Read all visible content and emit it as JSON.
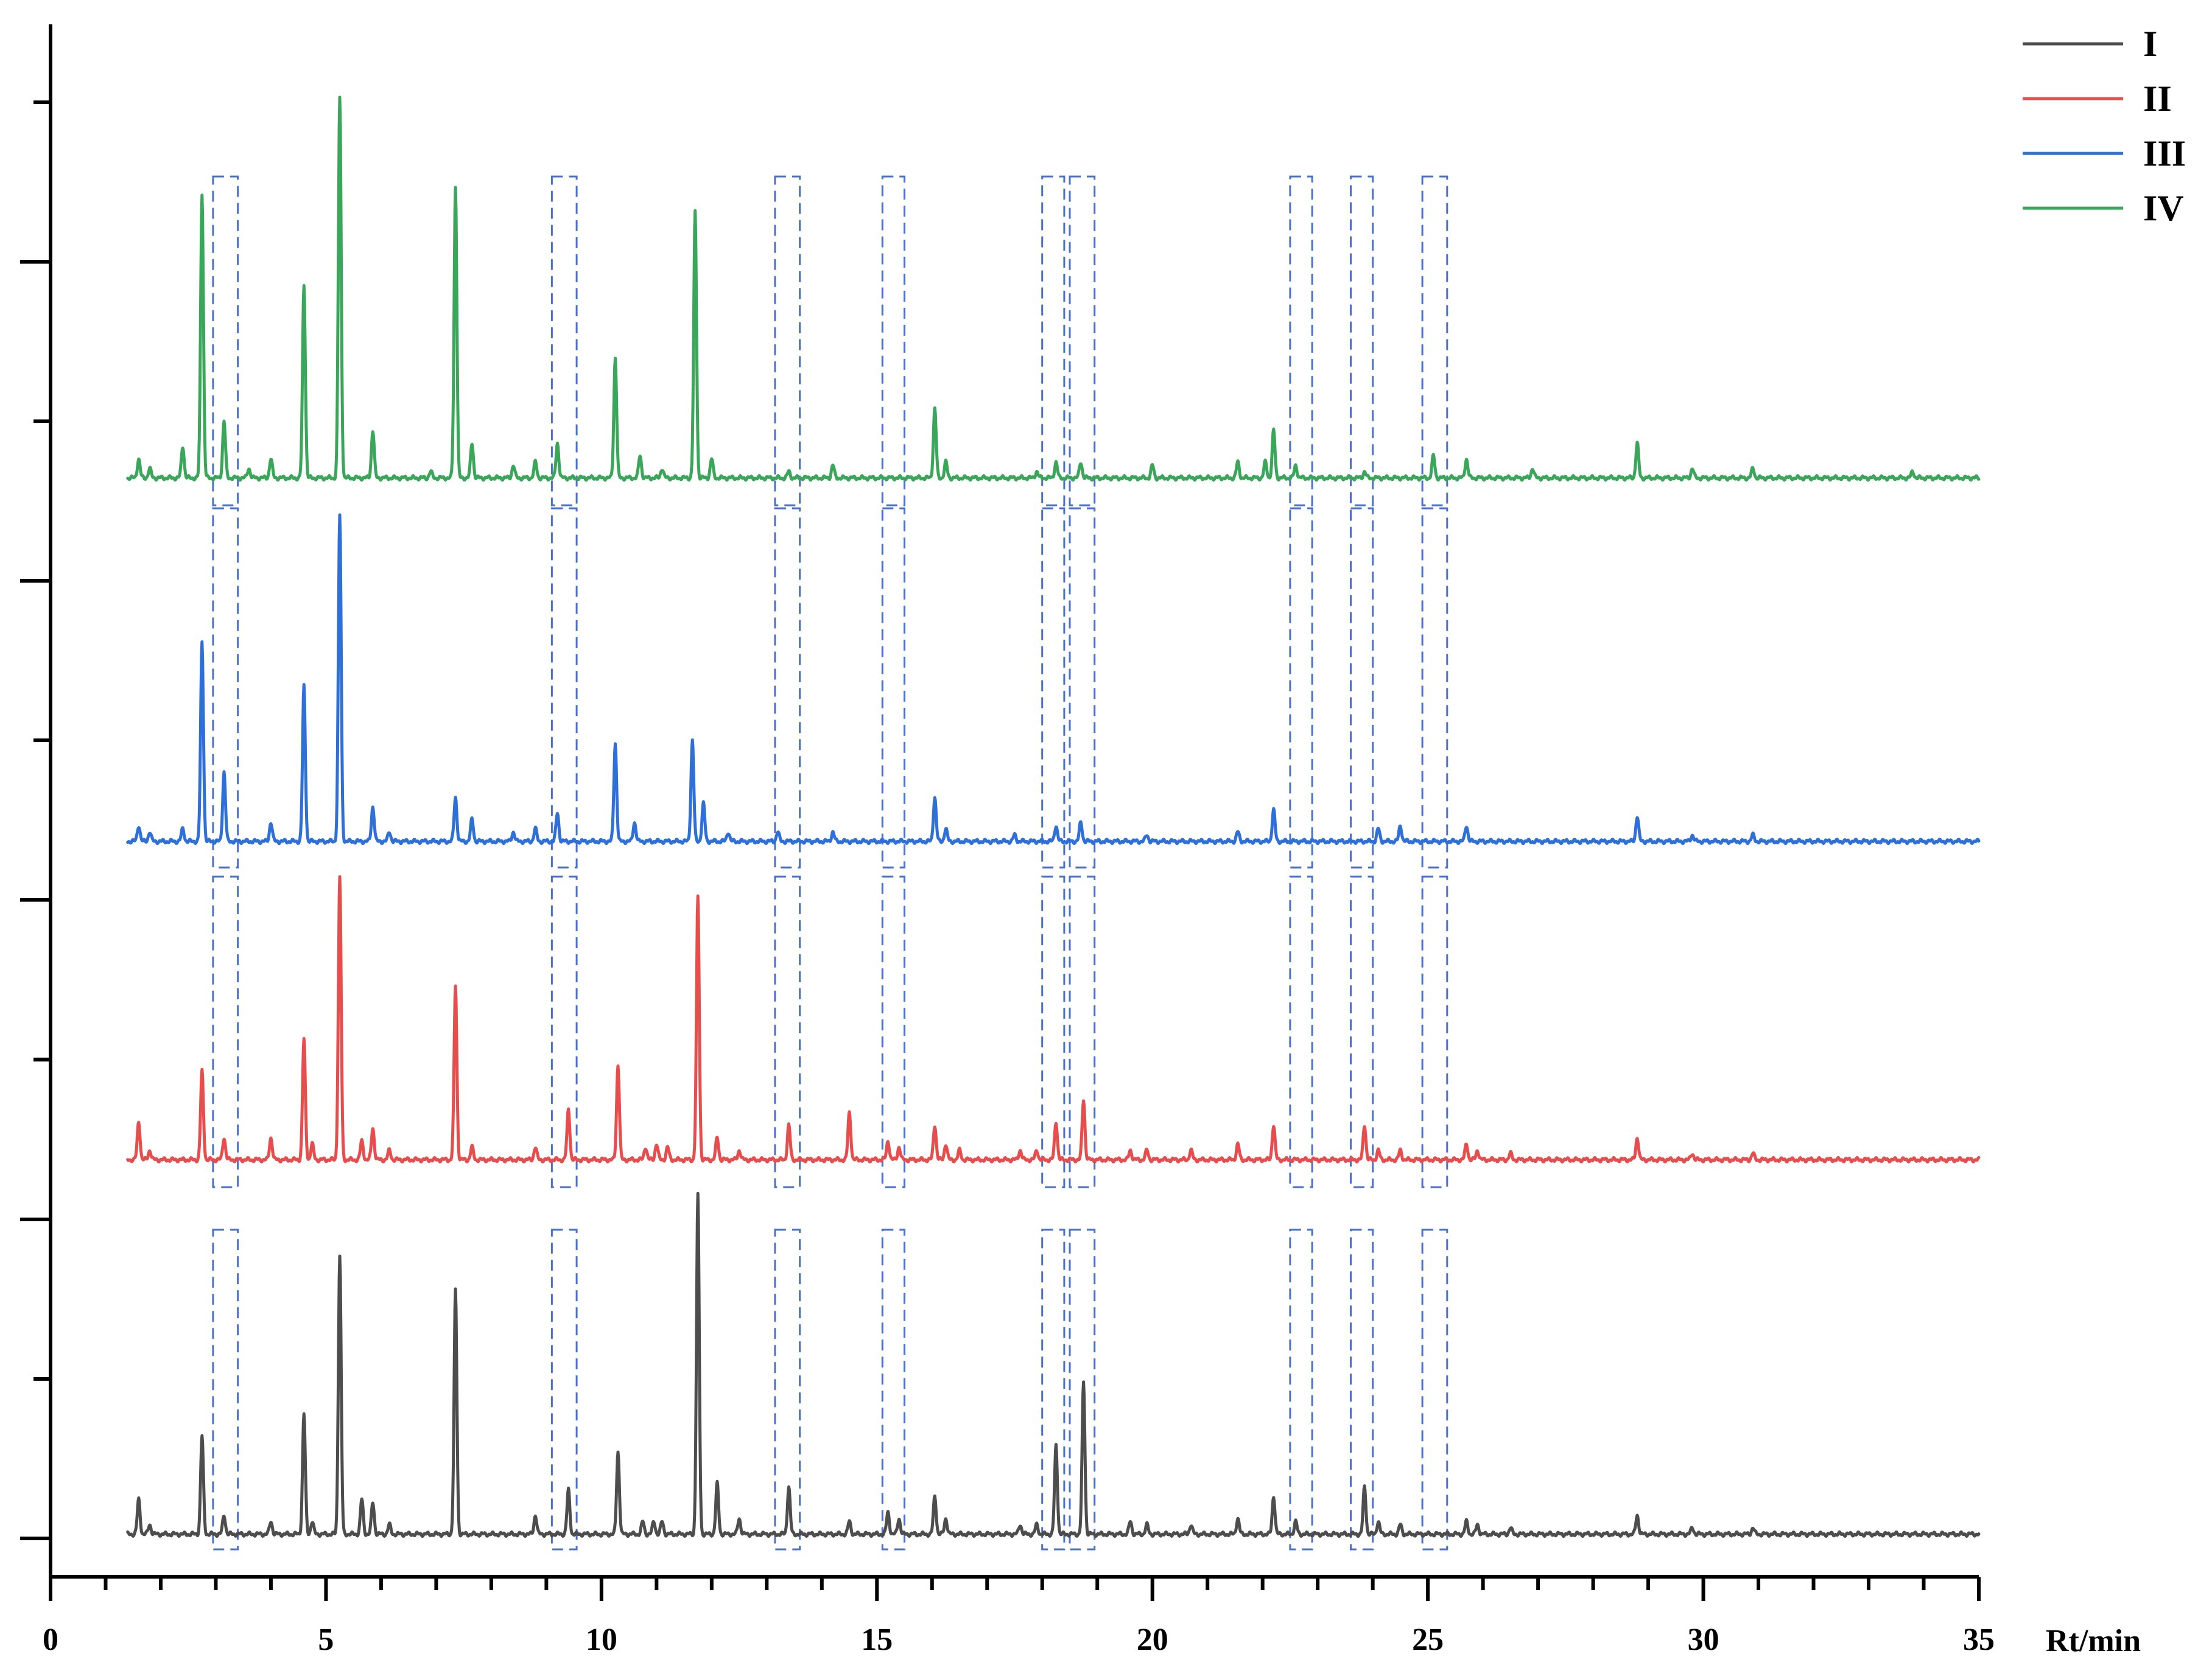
{
  "chart_data": {
    "type": "line",
    "title": "",
    "xlabel": "Rt/min",
    "ylabel": "",
    "xlim": [
      0,
      35
    ],
    "x_ticks": [
      0,
      5,
      10,
      15,
      20,
      25,
      30,
      35
    ],
    "x_tick_labels": [
      "0",
      "5",
      "10",
      "15",
      "20",
      "25",
      "30",
      "35"
    ],
    "y_tick_labels_shown": false,
    "stacked_offset": true,
    "legend_position": "top-right",
    "series": [
      {
        "name": "I",
        "color": "#4d4d4d",
        "baseline_slot": 0,
        "peaks": [
          [
            1.6,
            0.11
          ],
          [
            1.8,
            0.03
          ],
          [
            2.75,
            0.31
          ],
          [
            3.15,
            0.06
          ],
          [
            4.0,
            0.04
          ],
          [
            4.6,
            0.38
          ],
          [
            4.75,
            0.04
          ],
          [
            5.25,
            0.88
          ],
          [
            5.65,
            0.11
          ],
          [
            5.85,
            0.1
          ],
          [
            6.15,
            0.03
          ],
          [
            7.35,
            0.77
          ],
          [
            8.8,
            0.06
          ],
          [
            9.4,
            0.14
          ],
          [
            10.3,
            0.26
          ],
          [
            10.75,
            0.04
          ],
          [
            10.95,
            0.04
          ],
          [
            11.1,
            0.04
          ],
          [
            11.75,
            1.07
          ],
          [
            12.1,
            0.16
          ],
          [
            12.5,
            0.05
          ],
          [
            13.4,
            0.15
          ],
          [
            14.5,
            0.04
          ],
          [
            15.2,
            0.07
          ],
          [
            15.4,
            0.05
          ],
          [
            16.05,
            0.12
          ],
          [
            16.25,
            0.05
          ],
          [
            17.6,
            0.03
          ],
          [
            17.9,
            0.03
          ],
          [
            18.25,
            0.28
          ],
          [
            18.75,
            0.48
          ],
          [
            19.6,
            0.04
          ],
          [
            19.9,
            0.03
          ],
          [
            20.7,
            0.03
          ],
          [
            21.55,
            0.05
          ],
          [
            22.2,
            0.12
          ],
          [
            22.6,
            0.04
          ],
          [
            23.85,
            0.15
          ],
          [
            24.1,
            0.04
          ],
          [
            24.5,
            0.03
          ],
          [
            25.7,
            0.04
          ],
          [
            25.9,
            0.03
          ],
          [
            26.5,
            0.02
          ],
          [
            28.8,
            0.06
          ],
          [
            29.8,
            0.02
          ],
          [
            30.9,
            0.02
          ]
        ]
      },
      {
        "name": "II",
        "color": "#e84d4d",
        "baseline_slot": 1,
        "peaks": [
          [
            1.6,
            0.12
          ],
          [
            1.8,
            0.03
          ],
          [
            2.75,
            0.28
          ],
          [
            3.15,
            0.07
          ],
          [
            4.0,
            0.07
          ],
          [
            4.6,
            0.38
          ],
          [
            4.75,
            0.05
          ],
          [
            5.25,
            0.89
          ],
          [
            5.65,
            0.06
          ],
          [
            5.85,
            0.1
          ],
          [
            6.15,
            0.03
          ],
          [
            7.35,
            0.55
          ],
          [
            7.65,
            0.04
          ],
          [
            8.8,
            0.04
          ],
          [
            9.4,
            0.16
          ],
          [
            10.3,
            0.3
          ],
          [
            10.8,
            0.04
          ],
          [
            11.0,
            0.05
          ],
          [
            11.2,
            0.04
          ],
          [
            11.75,
            0.83
          ],
          [
            12.1,
            0.07
          ],
          [
            12.5,
            0.03
          ],
          [
            13.4,
            0.11
          ],
          [
            14.5,
            0.15
          ],
          [
            15.2,
            0.06
          ],
          [
            15.4,
            0.04
          ],
          [
            16.05,
            0.11
          ],
          [
            16.25,
            0.05
          ],
          [
            16.5,
            0.03
          ],
          [
            17.6,
            0.03
          ],
          [
            17.9,
            0.03
          ],
          [
            18.25,
            0.12
          ],
          [
            18.75,
            0.19
          ],
          [
            19.6,
            0.03
          ],
          [
            19.9,
            0.03
          ],
          [
            20.7,
            0.03
          ],
          [
            21.55,
            0.05
          ],
          [
            22.2,
            0.11
          ],
          [
            23.85,
            0.11
          ],
          [
            24.1,
            0.03
          ],
          [
            24.5,
            0.03
          ],
          [
            25.7,
            0.05
          ],
          [
            25.9,
            0.03
          ],
          [
            26.5,
            0.02
          ],
          [
            28.8,
            0.07
          ],
          [
            29.8,
            0.02
          ],
          [
            30.9,
            0.02
          ]
        ]
      },
      {
        "name": "III",
        "color": "#2f6fd8",
        "baseline_slot": 2,
        "peaks": [
          [
            1.6,
            0.05
          ],
          [
            1.8,
            0.03
          ],
          [
            2.4,
            0.04
          ],
          [
            2.75,
            0.63
          ],
          [
            3.15,
            0.22
          ],
          [
            4.0,
            0.06
          ],
          [
            4.6,
            0.49
          ],
          [
            5.25,
            1.03
          ],
          [
            5.85,
            0.11
          ],
          [
            6.15,
            0.03
          ],
          [
            7.35,
            0.14
          ],
          [
            7.65,
            0.07
          ],
          [
            8.4,
            0.03
          ],
          [
            8.8,
            0.04
          ],
          [
            9.2,
            0.09
          ],
          [
            10.25,
            0.31
          ],
          [
            10.6,
            0.06
          ],
          [
            11.65,
            0.32
          ],
          [
            11.85,
            0.12
          ],
          [
            12.3,
            0.03
          ],
          [
            13.2,
            0.03
          ],
          [
            14.2,
            0.03
          ],
          [
            16.05,
            0.14
          ],
          [
            16.25,
            0.04
          ],
          [
            17.5,
            0.02
          ],
          [
            18.25,
            0.05
          ],
          [
            18.7,
            0.06
          ],
          [
            19.9,
            0.02
          ],
          [
            21.55,
            0.03
          ],
          [
            22.2,
            0.1
          ],
          [
            24.1,
            0.04
          ],
          [
            24.5,
            0.05
          ],
          [
            25.7,
            0.05
          ],
          [
            28.8,
            0.08
          ],
          [
            29.8,
            0.02
          ],
          [
            30.9,
            0.02
          ]
        ]
      },
      {
        "name": "IV",
        "color": "#3aa65a",
        "baseline_slot": 3,
        "peaks": [
          [
            1.6,
            0.06
          ],
          [
            1.8,
            0.03
          ],
          [
            2.4,
            0.1
          ],
          [
            2.75,
            0.9
          ],
          [
            3.15,
            0.18
          ],
          [
            3.6,
            0.03
          ],
          [
            4.0,
            0.06
          ],
          [
            4.6,
            0.61
          ],
          [
            5.25,
            1.2
          ],
          [
            5.85,
            0.15
          ],
          [
            6.9,
            0.02
          ],
          [
            7.35,
            0.92
          ],
          [
            7.65,
            0.11
          ],
          [
            8.4,
            0.04
          ],
          [
            8.8,
            0.05
          ],
          [
            9.2,
            0.11
          ],
          [
            10.25,
            0.38
          ],
          [
            10.7,
            0.07
          ],
          [
            11.1,
            0.03
          ],
          [
            11.7,
            0.84
          ],
          [
            12.0,
            0.06
          ],
          [
            13.4,
            0.02
          ],
          [
            14.2,
            0.04
          ],
          [
            16.05,
            0.22
          ],
          [
            16.25,
            0.05
          ],
          [
            17.9,
            0.02
          ],
          [
            18.25,
            0.05
          ],
          [
            18.7,
            0.05
          ],
          [
            20.0,
            0.04
          ],
          [
            21.55,
            0.05
          ],
          [
            22.05,
            0.05
          ],
          [
            22.2,
            0.15
          ],
          [
            22.6,
            0.04
          ],
          [
            23.85,
            0.02
          ],
          [
            25.1,
            0.07
          ],
          [
            25.7,
            0.06
          ],
          [
            26.9,
            0.03
          ],
          [
            28.8,
            0.11
          ],
          [
            29.8,
            0.03
          ],
          [
            30.9,
            0.03
          ],
          [
            33.8,
            0.02
          ]
        ]
      }
    ],
    "highlight_regions_min": [
      [
        2.95,
        3.4
      ],
      [
        9.1,
        9.55
      ],
      [
        13.15,
        13.6
      ],
      [
        15.1,
        15.5
      ],
      [
        18.0,
        18.4
      ],
      [
        18.5,
        18.95
      ],
      [
        22.5,
        22.9
      ],
      [
        23.6,
        24.0
      ],
      [
        24.9,
        25.35
      ]
    ]
  }
}
